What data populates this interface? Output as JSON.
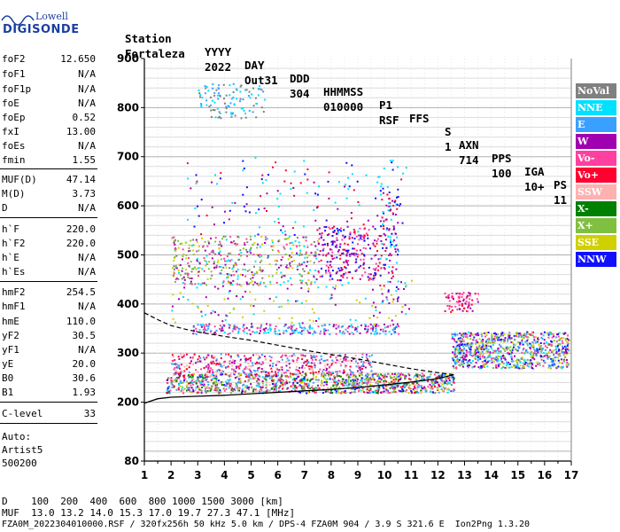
{
  "logo": {
    "top": "Lowell",
    "main": "DIGISONDE"
  },
  "header": {
    "labels": [
      "Station",
      "YYYY",
      "DAY",
      "DDD",
      "HHMMSS",
      "P1",
      "FFS",
      "S",
      "AXN",
      "PPS",
      "IGA",
      "PS"
    ],
    "values": [
      "Fortaleza",
      "2022",
      "Out31",
      "304",
      "010000",
      "RSF",
      "",
      "1",
      "714",
      "100",
      "10+",
      "11"
    ]
  },
  "params": [
    {
      "name": "foF2",
      "value": "12.650"
    },
    {
      "name": "foF1",
      "value": "N/A"
    },
    {
      "name": "foF1p",
      "value": "N/A"
    },
    {
      "name": "foE",
      "value": "N/A"
    },
    {
      "name": "foEp",
      "value": "0.52"
    },
    {
      "name": "fxI",
      "value": "13.00"
    },
    {
      "name": "foEs",
      "value": "N/A"
    },
    {
      "name": "fmin",
      "value": "1.55"
    },
    {
      "name": "MUF(D)",
      "value": "47.14"
    },
    {
      "name": "M(D)",
      "value": "3.73"
    },
    {
      "name": "D",
      "value": "N/A"
    },
    {
      "name": "h`F",
      "value": "220.0"
    },
    {
      "name": "h`F2",
      "value": "220.0"
    },
    {
      "name": "h`E",
      "value": "N/A"
    },
    {
      "name": "h`Es",
      "value": "N/A"
    },
    {
      "name": "hmF2",
      "value": "254.5"
    },
    {
      "name": "hmF1",
      "value": "N/A"
    },
    {
      "name": "hmE",
      "value": "110.0"
    },
    {
      "name": "yF2",
      "value": "30.5"
    },
    {
      "name": "yF1",
      "value": "N/A"
    },
    {
      "name": "yE",
      "value": "20.0"
    },
    {
      "name": "B0",
      "value": "30.6"
    },
    {
      "name": "B1",
      "value": "1.93"
    },
    {
      "name": "C-level",
      "value": "33"
    }
  ],
  "autoscale": {
    "label": "Auto:",
    "artist": "Artist5",
    "code": "500200"
  },
  "legend": [
    {
      "label": "NoVal",
      "color": "#808080"
    },
    {
      "label": "NNE",
      "color": "#00e0ff"
    },
    {
      "label": "E",
      "color": "#3aa0ff"
    },
    {
      "label": "W",
      "color": "#a000b0"
    },
    {
      "label": "Vo-",
      "color": "#ff40a0"
    },
    {
      "label": "Vo+",
      "color": "#ff0030"
    },
    {
      "label": "SSW",
      "color": "#ffb0b0"
    },
    {
      "label": "X-",
      "color": "#008000"
    },
    {
      "label": "X+",
      "color": "#80c040"
    },
    {
      "label": "SSE",
      "color": "#d0d000"
    },
    {
      "label": "NNW",
      "color": "#1010ff"
    }
  ],
  "footer": {
    "d_row": "D    100  200  400  600  800 1000 1500 3000 [km]",
    "muf_row": "MUF  13.0 13.2 14.0 15.3 17.0 19.7 27.3 47.1 [MHz]",
    "info_row": "FZA0M_2022304010000.RSF / 320fx256h 50 kHz 5.0 km / DPS-4 FZA0M 904 / 3.9 S 321.6 E  Ion2Png 1.3.20"
  },
  "chart_data": {
    "type": "scatter",
    "title": "",
    "xlabel": "",
    "ylabel": "",
    "xlim": [
      1,
      17
    ],
    "ylim": [
      80,
      900
    ],
    "x_ticks": [
      1,
      2,
      3,
      4,
      5,
      6,
      7,
      8,
      9,
      10,
      11,
      12,
      13,
      14,
      15,
      16,
      17
    ],
    "y_ticks": [
      80,
      200,
      300,
      400,
      500,
      600,
      700,
      800,
      900
    ],
    "grid": true,
    "legend_position": "right",
    "curves": {
      "profile_solid": {
        "x": [
          1.0,
          1.5,
          2.0,
          3.0,
          4.0,
          5.0,
          6.0,
          7.0,
          8.0,
          9.0,
          10.0,
          11.0,
          12.0,
          12.6
        ],
        "y": [
          198,
          207,
          210,
          212,
          214,
          217,
          220,
          223,
          226,
          230,
          235,
          241,
          248,
          256
        ]
      },
      "profile_dashed": {
        "x": [
          1.0,
          1.5,
          2.0,
          2.5,
          3.0,
          4.0,
          5.0,
          6.0,
          7.0,
          8.0,
          9.0,
          10.0,
          11.0,
          12.0,
          12.6
        ],
        "y": [
          382,
          368,
          356,
          349,
          343,
          334,
          326,
          316,
          306,
          297,
          288,
          278,
          268,
          260,
          256
        ]
      }
    },
    "regions": [
      {
        "x": [
          1.8,
          12.6
        ],
        "y": [
          220,
          260
        ],
        "density": 1.0,
        "colors": [
          "#ff0030",
          "#a000b0",
          "#ff40a0",
          "#008000",
          "#00e0ff",
          "#3aa0ff",
          "#d0d000",
          "#1010ff",
          "#808080",
          "#ffb0b0",
          "#80c040"
        ]
      },
      {
        "x": [
          2.0,
          9.5
        ],
        "y": [
          260,
          300
        ],
        "density": 0.5,
        "colors": [
          "#ffb0b0",
          "#ff40a0",
          "#ff0030",
          "#a000b0",
          "#3aa0ff"
        ]
      },
      {
        "x": [
          12.5,
          16.9
        ],
        "y": [
          270,
          345
        ],
        "density": 0.9,
        "colors": [
          "#1010ff",
          "#3aa0ff",
          "#a000b0",
          "#00e0ff",
          "#ff40a0",
          "#80c040",
          "#d0d000"
        ]
      },
      {
        "x": [
          12.2,
          13.5
        ],
        "y": [
          385,
          425
        ],
        "density": 0.5,
        "colors": [
          "#a000b0",
          "#ff40a0",
          "#ff0030"
        ]
      },
      {
        "x": [
          2.8,
          10.5
        ],
        "y": [
          340,
          360
        ],
        "density": 0.6,
        "colors": [
          "#00e0ff",
          "#3aa0ff",
          "#a000b0",
          "#ff40a0"
        ]
      },
      {
        "x": [
          2.0,
          7.5
        ],
        "y": [
          440,
          540
        ],
        "density": 0.28,
        "colors": [
          "#d0d000",
          "#808080",
          "#00e0ff",
          "#80c040",
          "#ff40a0",
          "#a000b0"
        ]
      },
      {
        "x": [
          7.5,
          9.8
        ],
        "y": [
          450,
          560
        ],
        "density": 0.35,
        "colors": [
          "#a000b0",
          "#ff40a0",
          "#ff0030",
          "#1010ff"
        ]
      },
      {
        "x": [
          3.0,
          5.5
        ],
        "y": [
          780,
          850
        ],
        "density": 0.22,
        "colors": [
          "#00e0ff",
          "#3aa0ff",
          "#808080"
        ]
      },
      {
        "x": [
          2.0,
          11.0
        ],
        "y": [
          360,
          450
        ],
        "density": 0.06,
        "colors": [
          "#00e0ff",
          "#a000b0",
          "#d0d000"
        ]
      },
      {
        "x": [
          2.5,
          11.0
        ],
        "y": [
          540,
          700
        ],
        "density": 0.04,
        "colors": [
          "#00e0ff",
          "#a000b0",
          "#1010ff",
          "#ff0030"
        ]
      },
      {
        "x": [
          9.8,
          10.5
        ],
        "y": [
          400,
          640
        ],
        "density": 0.25,
        "colors": [
          "#a000b0",
          "#1010ff",
          "#ff0030",
          "#00e0ff"
        ]
      }
    ]
  }
}
